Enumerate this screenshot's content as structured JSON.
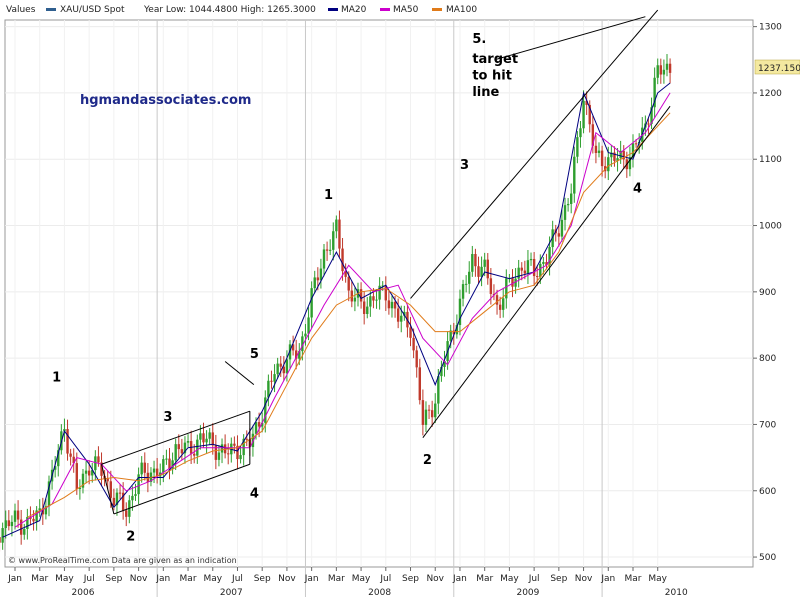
{
  "header": {
    "values_label": "Values",
    "series_label": "XAU/USD Spot",
    "year_range_label": "Year Low: 1044.4800 High: 1265.3000",
    "ma20_label": "MA20",
    "ma50_label": "MA50",
    "ma100_label": "MA100"
  },
  "watermark": "hgmandassociates.com",
  "footer": "© www.ProRealTime.com Data are given as an indication",
  "price_badge": "1237.150",
  "colors": {
    "series": "#2f5f8f",
    "ma20": "#000080",
    "ma50": "#cc00cc",
    "ma100": "#e07b1a",
    "up_candle": "#2e9e2e",
    "down_candle": "#c0392b",
    "badge_bg": "#f4e9a0"
  },
  "chart_data": {
    "type": "line",
    "title": "",
    "xlabel": "",
    "ylabel": "",
    "ylim": [
      485,
      1310
    ],
    "y_ticks": [
      500,
      600,
      700,
      800,
      900,
      1000,
      1100,
      1200,
      1300
    ],
    "x_tick_labels": [
      "Jan",
      "Mar",
      "May",
      "Jul",
      "Sep",
      "Nov",
      "Jan",
      "Mar",
      "May",
      "Jul",
      "Sep",
      "Nov",
      "Jan",
      "Mar",
      "May",
      "Jul",
      "Sep",
      "Nov",
      "Jan",
      "Mar",
      "May",
      "Jul",
      "Sep",
      "Nov",
      "Jan",
      "Mar",
      "May"
    ],
    "year_labels": [
      "2006",
      "2007",
      "2008",
      "2009",
      "2010"
    ],
    "series": [
      {
        "name": "XAU/USD Spot",
        "x": [
          "2005-11",
          "2005-12",
          "2006-01",
          "2006-02",
          "2006-03",
          "2006-04",
          "2006-05",
          "2006-06",
          "2006-07",
          "2006-08",
          "2006-09",
          "2006-10",
          "2006-11",
          "2006-12",
          "2007-01",
          "2007-02",
          "2007-03",
          "2007-04",
          "2007-05",
          "2007-06",
          "2007-07",
          "2007-08",
          "2007-09",
          "2007-10",
          "2007-11",
          "2007-12",
          "2008-01",
          "2008-02",
          "2008-03",
          "2008-04",
          "2008-05",
          "2008-06",
          "2008-07",
          "2008-08",
          "2008-09",
          "2008-10",
          "2008-11",
          "2008-12",
          "2009-01",
          "2009-02",
          "2009-03",
          "2009-04",
          "2009-05",
          "2009-06",
          "2009-07",
          "2009-08",
          "2009-09",
          "2009-10",
          "2009-11",
          "2009-12",
          "2010-01",
          "2010-02",
          "2010-03",
          "2010-04",
          "2010-05",
          "2010-06"
        ],
        "values": [
          525,
          545,
          555,
          550,
          565,
          620,
          700,
          600,
          640,
          630,
          590,
          570,
          620,
          630,
          630,
          665,
          660,
          680,
          670,
          655,
          665,
          670,
          720,
          780,
          800,
          810,
          890,
          960,
          990,
          900,
          880,
          890,
          900,
          860,
          850,
          700,
          740,
          820,
          880,
          950,
          930,
          880,
          910,
          940,
          930,
          950,
          1000,
          1050,
          1200,
          1100,
          1100,
          1100,
          1110,
          1150,
          1230,
          1240
        ]
      },
      {
        "name": "MA20",
        "x": [
          "2005-12",
          "2006-03",
          "2006-05",
          "2006-07",
          "2006-09",
          "2006-11",
          "2007-01",
          "2007-03",
          "2007-05",
          "2007-07",
          "2007-09",
          "2007-11",
          "2008-01",
          "2008-03",
          "2008-05",
          "2008-07",
          "2008-09",
          "2008-11",
          "2009-01",
          "2009-03",
          "2009-05",
          "2009-07",
          "2009-09",
          "2009-11",
          "2010-01",
          "2010-03",
          "2010-05",
          "2010-06"
        ],
        "values": [
          530,
          555,
          690,
          640,
          575,
          620,
          620,
          665,
          670,
          660,
          720,
          800,
          890,
          960,
          890,
          910,
          850,
          760,
          860,
          930,
          920,
          930,
          1000,
          1200,
          1110,
          1100,
          1200,
          1215
        ]
      },
      {
        "name": "MA50",
        "x": [
          "2006-01",
          "2006-04",
          "2006-06",
          "2006-08",
          "2006-10",
          "2006-12",
          "2007-02",
          "2007-04",
          "2007-06",
          "2007-08",
          "2007-10",
          "2007-12",
          "2008-02",
          "2008-04",
          "2008-06",
          "2008-08",
          "2008-10",
          "2008-12",
          "2009-02",
          "2009-04",
          "2009-06",
          "2009-08",
          "2009-10",
          "2009-12",
          "2010-02",
          "2010-04",
          "2010-06"
        ],
        "values": [
          545,
          580,
          650,
          640,
          600,
          615,
          640,
          665,
          665,
          665,
          740,
          810,
          880,
          940,
          900,
          910,
          830,
          790,
          860,
          900,
          920,
          940,
          1000,
          1140,
          1110,
          1140,
          1200
        ]
      },
      {
        "name": "MA100",
        "x": [
          "2006-02",
          "2006-05",
          "2006-07",
          "2006-09",
          "2006-11",
          "2007-01",
          "2007-03",
          "2007-05",
          "2007-07",
          "2007-09",
          "2007-11",
          "2008-01",
          "2008-03",
          "2008-05",
          "2008-07",
          "2008-09",
          "2008-11",
          "2009-01",
          "2009-03",
          "2009-05",
          "2009-07",
          "2009-09",
          "2009-11",
          "2010-01",
          "2010-03",
          "2010-06"
        ],
        "values": [
          560,
          590,
          615,
          620,
          615,
          625,
          645,
          660,
          665,
          690,
          760,
          830,
          880,
          900,
          905,
          880,
          840,
          840,
          870,
          900,
          910,
          960,
          1050,
          1090,
          1110,
          1170
        ]
      }
    ],
    "trendlines": [
      {
        "x": [
          "2006-08",
          "2007-08"
        ],
        "values": [
          640,
          720
        ]
      },
      {
        "x": [
          "2006-09",
          "2007-08"
        ],
        "values": [
          565,
          640
        ]
      },
      {
        "x": [
          "2008-09",
          "2010-05"
        ],
        "values": [
          890,
          1325
        ]
      },
      {
        "x": [
          "2008-10",
          "2010-06"
        ],
        "values": [
          680,
          1180
        ]
      }
    ],
    "annotations": [
      {
        "text": "1",
        "x": "2006-04",
        "y": 765
      },
      {
        "text": "2",
        "x": "2006-10",
        "y": 525
      },
      {
        "text": "3",
        "x": "2007-01",
        "y": 705
      },
      {
        "text": "4",
        "x": "2007-08",
        "y": 590
      },
      {
        "text": "5",
        "x": "2007-08",
        "y": 800
      },
      {
        "text": "1",
        "x": "2008-02",
        "y": 1040
      },
      {
        "text": "2",
        "x": "2008-10",
        "y": 640
      },
      {
        "text": "3",
        "x": "2009-01",
        "y": 1085
      },
      {
        "text": "4",
        "x": "2010-03",
        "y": 1050
      },
      {
        "text": "5.",
        "x": "2009-02",
        "y": 1275
      },
      {
        "text": "target",
        "x": "2009-02",
        "y": 1245
      },
      {
        "text": "to hit",
        "x": "2009-02",
        "y": 1220
      },
      {
        "text": "line",
        "x": "2009-02",
        "y": 1195
      }
    ],
    "grid": true,
    "legend": "top-left"
  }
}
